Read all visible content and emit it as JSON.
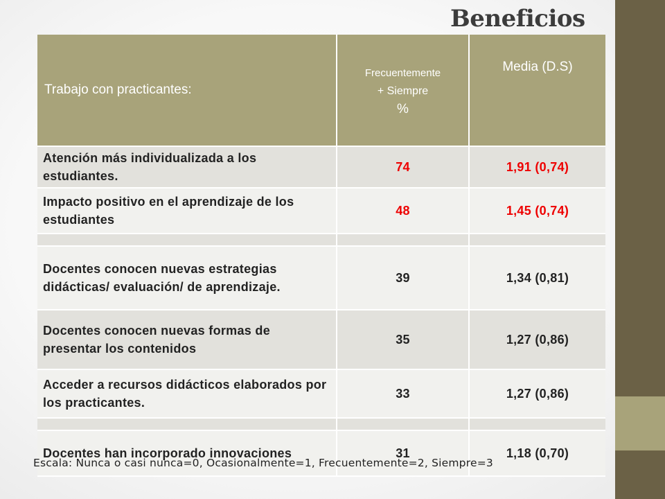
{
  "slide": {
    "title": "Beneficios",
    "scale_note": "Escala: Nunca o casi nunca=0,  Ocasionalmente=1,  Frecuentemente=2,  Siempre=3"
  },
  "table": {
    "headers": {
      "item": "Trabajo con practicantes:",
      "percent_line1": "Frecuentemente",
      "percent_line2": "+ Siempre",
      "percent_line3": "%",
      "mean": "Media (D.S)"
    },
    "rows": [
      {
        "label": "Atención más individualizada a los estudiantes.",
        "percent": "74",
        "mean": "1,91 (0,74)"
      },
      {
        "label": "Impacto positivo en el aprendizaje de los estudiantes",
        "percent": "48",
        "mean": "1,45 (0,74)"
      },
      {
        "label": "Docentes conocen nuevas estrategias didácticas/ evaluación/ de aprendizaje.",
        "percent": "39",
        "mean": "1,34 (0,81)"
      },
      {
        "label": "Docentes conocen nuevas formas de presentar los contenidos",
        "percent": "35",
        "mean": "1,27 (0,86)"
      },
      {
        "label": "Acceder a recursos didácticos elaborados por los practicantes.",
        "percent": "33",
        "mean": "1,27 (0,86)"
      },
      {
        "label": "Docentes han  incorporado innovaciones",
        "percent": "31",
        "mean": "1,18 (0,70)"
      }
    ]
  },
  "colors": {
    "header_bg": "#a8a37a",
    "sidebar": "#6b6146",
    "highlight_red": "#ee0000"
  }
}
